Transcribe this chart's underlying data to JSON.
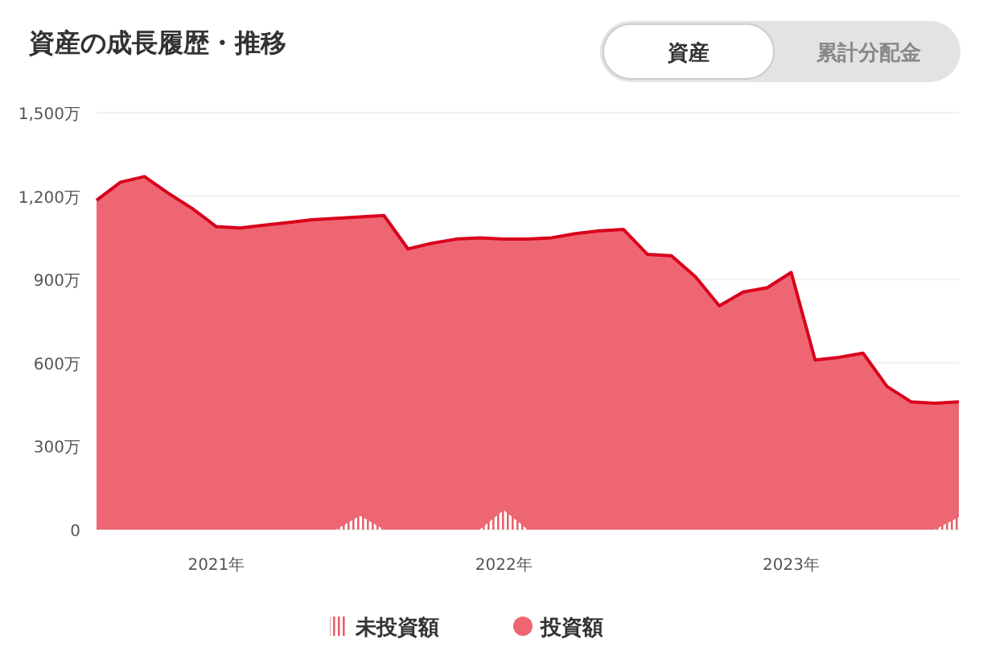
{
  "chart_data": {
    "type": "area",
    "title": "資産の成長履歴・推移",
    "annotations": [
      "資産",
      "累計分配金"
    ],
    "categories": [
      null,
      null,
      null,
      null,
      null,
      "2021年",
      null,
      null,
      null,
      null,
      null,
      null,
      null,
      null,
      null,
      null,
      null,
      "2022年",
      null,
      null,
      null,
      null,
      null,
      null,
      null,
      null,
      null,
      null,
      null,
      "2023年",
      null,
      null,
      null,
      null,
      null,
      null,
      null
    ],
    "series": [
      {
        "name": "未投資額",
        "color": "#e8606c",
        "values": [
          0,
          0,
          0,
          0,
          0,
          0,
          0,
          0,
          0,
          0,
          0,
          50,
          0,
          0,
          0,
          0,
          0,
          70,
          0,
          0,
          0,
          0,
          0,
          0,
          0,
          0,
          0,
          0,
          0,
          0,
          0,
          0,
          0,
          0,
          0,
          0,
          45
        ]
      },
      {
        "name": "投資額",
        "color": "#ef6673",
        "values": [
          1185,
          1250,
          1270,
          1210,
          1155,
          1090,
          1085,
          1095,
          1105,
          1115,
          1120,
          1125,
          1130,
          1010,
          1030,
          1045,
          1050,
          1045,
          1045,
          1050,
          1065,
          1075,
          1080,
          990,
          985,
          910,
          805,
          855,
          870,
          925,
          610,
          620,
          635,
          515,
          460,
          455,
          460
        ]
      }
    ],
    "ylim": [
      0,
      1500
    ],
    "yticks": [
      {
        "value": 0,
        "label": "0"
      },
      {
        "value": 300,
        "label": "300万"
      },
      {
        "value": 600,
        "label": "600万"
      },
      {
        "value": 900,
        "label": "900万"
      },
      {
        "value": 1200,
        "label": "1,200万"
      },
      {
        "value": 1500,
        "label": "1,500万"
      }
    ],
    "grid": "y",
    "legend": "bottom",
    "marker": "none"
  }
}
